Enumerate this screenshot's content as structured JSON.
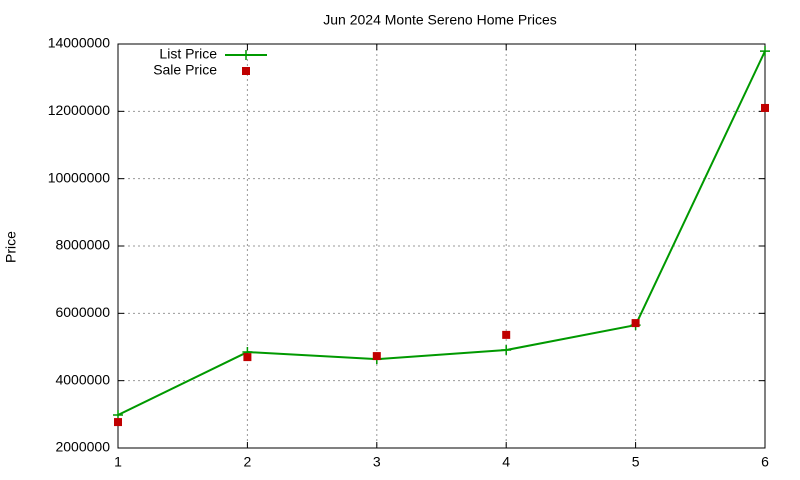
{
  "chart_data": {
    "type": "line",
    "title": "Jun 2024 Monte Sereno Home Prices",
    "y_label": "Price",
    "x": [
      1,
      2,
      3,
      4,
      5,
      6
    ],
    "series": [
      {
        "name": "List Price",
        "color": "#009900",
        "style": "linespoints",
        "values": [
          2980000,
          4850000,
          4640000,
          4910000,
          5650000,
          13790000
        ]
      },
      {
        "name": "Sale Price",
        "color": "#c00000",
        "style": "points",
        "values": [
          2770000,
          4700000,
          4730000,
          5360000,
          5710000,
          12100000
        ]
      }
    ],
    "xlim": [
      1,
      6
    ],
    "xticks": [
      1,
      2,
      3,
      4,
      5,
      6
    ],
    "ylim": [
      2000000,
      14000000
    ],
    "yticks": [
      2000000,
      4000000,
      6000000,
      8000000,
      10000000,
      12000000,
      14000000
    ],
    "grid": true,
    "legend": "top-left"
  }
}
